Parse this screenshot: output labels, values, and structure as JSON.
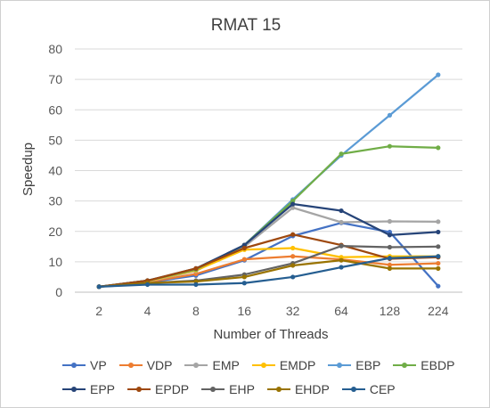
{
  "chart_data": {
    "type": "line",
    "title": "RMAT 15",
    "xlabel": "Number of Threads",
    "ylabel": "Speedup",
    "categories": [
      "2",
      "4",
      "8",
      "16",
      "32",
      "64",
      "128",
      "224"
    ],
    "ylim": [
      0,
      80
    ],
    "yticks": [
      0,
      10,
      20,
      30,
      40,
      50,
      60,
      70,
      80
    ],
    "grid": true,
    "legend_position": "bottom",
    "series": [
      {
        "name": "VP",
        "color": "#4472C4",
        "values": [
          1.8,
          3.2,
          5.5,
          10.5,
          18.5,
          22.8,
          19.8,
          2.0
        ]
      },
      {
        "name": "VDP",
        "color": "#ED7D31",
        "values": [
          1.8,
          3.3,
          6.0,
          10.8,
          11.8,
          10.8,
          9.0,
          9.5
        ]
      },
      {
        "name": "EMP",
        "color": "#A5A5A5",
        "values": [
          1.8,
          3.5,
          7.0,
          15.0,
          27.8,
          23.0,
          23.3,
          23.2
        ]
      },
      {
        "name": "EMDP",
        "color": "#FFC000",
        "values": [
          1.8,
          3.6,
          7.2,
          14.0,
          14.5,
          11.5,
          11.8,
          11.8
        ]
      },
      {
        "name": "EBP",
        "color": "#5B9BD5",
        "values": [
          1.8,
          3.8,
          7.5,
          15.5,
          30.5,
          45.0,
          58.2,
          71.5
        ]
      },
      {
        "name": "EBDP",
        "color": "#70AD47",
        "values": [
          1.8,
          3.8,
          7.5,
          15.5,
          30.0,
          45.5,
          48.0,
          47.5
        ]
      },
      {
        "name": "EPP",
        "color": "#264478",
        "values": [
          1.8,
          3.8,
          7.8,
          15.5,
          29.0,
          26.8,
          18.8,
          19.8
        ]
      },
      {
        "name": "EPDP",
        "color": "#9E480E",
        "values": [
          1.8,
          3.8,
          7.8,
          14.5,
          19.0,
          15.5,
          11.0,
          11.5
        ]
      },
      {
        "name": "EHP",
        "color": "#636363",
        "values": [
          1.8,
          3.0,
          3.8,
          5.8,
          9.5,
          15.2,
          14.8,
          15.0
        ]
      },
      {
        "name": "EHDP",
        "color": "#997300",
        "values": [
          1.8,
          3.0,
          3.5,
          5.0,
          8.8,
          10.5,
          7.8,
          7.8
        ]
      },
      {
        "name": "CEP",
        "color": "#255E91",
        "values": [
          1.8,
          2.5,
          2.5,
          3.0,
          5.0,
          8.2,
          11.2,
          11.8
        ]
      }
    ]
  }
}
